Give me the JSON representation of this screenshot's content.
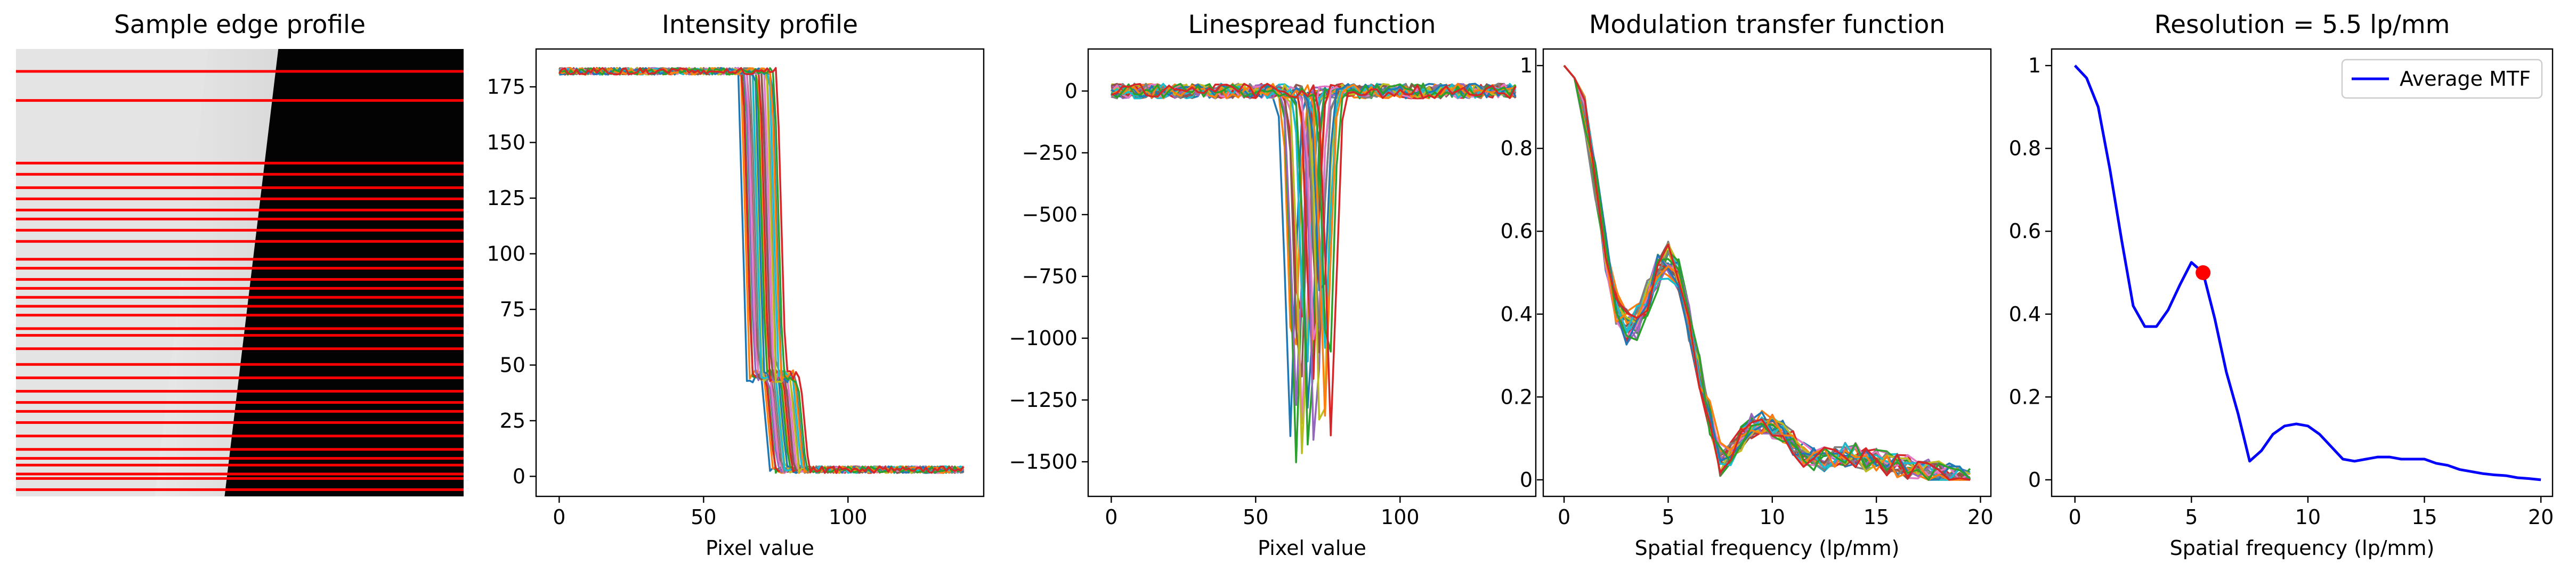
{
  "chart_data": [
    {
      "type": "image",
      "title": "Sample edge profile",
      "description_values": {
        "edge_position_fraction": 0.55,
        "edge_tilt_fraction": 0.12,
        "background_level": "light gray",
        "foreground_level": "black"
      },
      "sample_lines": [
        0.05,
        0.115,
        0.255,
        0.28,
        0.31,
        0.335,
        0.36,
        0.38,
        0.405,
        0.43,
        0.47,
        0.49,
        0.515,
        0.535,
        0.555,
        0.575,
        0.595,
        0.625,
        0.64,
        0.67,
        0.705,
        0.735,
        0.765,
        0.79,
        0.81,
        0.835,
        0.865,
        0.895,
        0.915,
        0.93,
        0.95,
        0.96,
        0.985
      ],
      "line_color": "#ff0000"
    },
    {
      "type": "line",
      "title": "Intensity profile",
      "xlabel": "Pixel value",
      "ylabel": "",
      "xlim": [
        -8,
        147
      ],
      "ylim": [
        -9,
        192
      ],
      "xticks": [
        0,
        50,
        100
      ],
      "yticks": [
        0,
        25,
        50,
        75,
        100,
        125,
        150,
        175
      ],
      "series_count": 24,
      "x_range": [
        0,
        140
      ],
      "high_level": 182,
      "low_level": 3,
      "edge_start": 62,
      "edge_spacing": 0.55,
      "shoulder_level": 45
    },
    {
      "type": "line",
      "title": "Linespread function",
      "xlabel": "Pixel value",
      "ylabel": "",
      "xlim": [
        -8,
        147
      ],
      "ylim": [
        -1640,
        170
      ],
      "xticks": [
        0,
        50,
        100
      ],
      "yticks": [
        0,
        -250,
        -500,
        -750,
        -1000,
        -1250,
        -1500
      ],
      "series_count": 24,
      "baseline_noise": 30,
      "peak_min": -1560,
      "peak_max": -850
    },
    {
      "type": "line",
      "title": "Modulation transfer function",
      "xlabel": "Spatial frequency (lp/mm)",
      "ylabel": "",
      "xlim": [
        -1,
        20.5
      ],
      "ylim": [
        -0.04,
        1.04
      ],
      "xticks": [
        0,
        5,
        10,
        15,
        20
      ],
      "yticks": [
        0.0,
        0.2,
        0.4,
        0.6,
        0.8,
        1.0
      ],
      "series_count": 24,
      "x": [
        0,
        0.5,
        1,
        1.5,
        2,
        2.5,
        3,
        3.5,
        4,
        4.5,
        5,
        5.5,
        6,
        6.5,
        7,
        7.5,
        8,
        8.5,
        9,
        9.5,
        10,
        10.5,
        11,
        11.5,
        12,
        12.5,
        13,
        13.5,
        14,
        14.5,
        15,
        15.5,
        16,
        16.5,
        17,
        17.5,
        18,
        18.5,
        19,
        19.5
      ],
      "mean": [
        1.0,
        0.97,
        0.88,
        0.72,
        0.55,
        0.42,
        0.37,
        0.38,
        0.44,
        0.5,
        0.53,
        0.5,
        0.38,
        0.26,
        0.15,
        0.05,
        0.06,
        0.1,
        0.13,
        0.14,
        0.13,
        0.12,
        0.09,
        0.06,
        0.05,
        0.05,
        0.06,
        0.06,
        0.06,
        0.05,
        0.05,
        0.04,
        0.035,
        0.03,
        0.025,
        0.02,
        0.015,
        0.01,
        0.005,
        0.0
      ]
    },
    {
      "type": "line",
      "title": "Resolution = 5.5 lp/mm",
      "xlabel": "Spatial frequency (lp/mm)",
      "ylabel": "",
      "xlim": [
        -1,
        20.5
      ],
      "ylim": [
        -0.04,
        1.04
      ],
      "xticks": [
        0,
        5,
        10,
        15,
        20
      ],
      "yticks": [
        0.0,
        0.2,
        0.4,
        0.6,
        0.8,
        1.0
      ],
      "legend": {
        "placement": "top-right",
        "entries": [
          "Average MTF"
        ]
      },
      "series": [
        {
          "name": "Average MTF",
          "color": "#0000ff",
          "x": [
            0,
            0.5,
            1,
            1.5,
            2,
            2.5,
            3,
            3.5,
            4,
            4.5,
            5,
            5.5,
            6,
            6.5,
            7,
            7.5,
            8,
            8.5,
            9,
            9.5,
            10,
            10.5,
            11,
            11.5,
            12,
            12.5,
            13,
            13.5,
            14,
            14.5,
            15,
            15.5,
            16,
            16.5,
            17,
            17.5,
            18,
            18.5,
            19,
            19.5,
            20
          ],
          "values": [
            1.0,
            0.97,
            0.9,
            0.75,
            0.58,
            0.42,
            0.37,
            0.37,
            0.41,
            0.47,
            0.525,
            0.5,
            0.39,
            0.26,
            0.16,
            0.045,
            0.07,
            0.11,
            0.13,
            0.135,
            0.13,
            0.11,
            0.08,
            0.05,
            0.045,
            0.05,
            0.055,
            0.055,
            0.05,
            0.05,
            0.05,
            0.04,
            0.035,
            0.025,
            0.02,
            0.015,
            0.012,
            0.01,
            0.005,
            0.003,
            0.0
          ]
        }
      ],
      "marker": {
        "x": 5.5,
        "y": 0.5,
        "color": "#ff0000"
      }
    }
  ]
}
